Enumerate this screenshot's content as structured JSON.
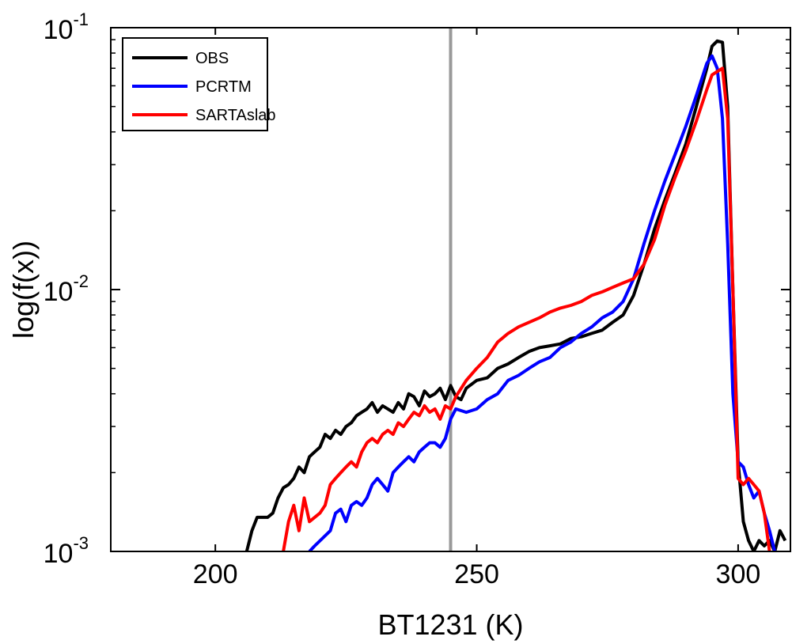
{
  "chart_data": {
    "type": "line",
    "xlabel": "BT1231 (K)",
    "ylabel": "log(f(x))",
    "xlim": [
      180,
      310
    ],
    "ylim": [
      0.001,
      0.1
    ],
    "yscale": "log",
    "xticks": [
      200,
      250,
      300
    ],
    "xtick_labels": [
      "200",
      "250",
      "300"
    ],
    "yticks": [
      0.001,
      0.01,
      0.1
    ],
    "ytick_labels": [
      {
        "base": "10",
        "exp": "-3"
      },
      {
        "base": "10",
        "exp": "-2"
      },
      {
        "base": "10",
        "exp": "-1"
      }
    ],
    "grid": false,
    "legend_position": "top-left",
    "vline": {
      "x": 245,
      "color": "#999999"
    },
    "series": [
      {
        "name": "OBS",
        "color": "#000000",
        "x": [
          206,
          207,
          208,
          210,
          211,
          212,
          213,
          214,
          215,
          216,
          217,
          218,
          219,
          220,
          221,
          222,
          223,
          224,
          225,
          226,
          227,
          228,
          229,
          230,
          231,
          232,
          233,
          234,
          235,
          236,
          237,
          238,
          239,
          240,
          241,
          242,
          243,
          244,
          245,
          246,
          247,
          248,
          250,
          252,
          254,
          256,
          258,
          260,
          262,
          264,
          266,
          268,
          270,
          272,
          274,
          276,
          278,
          280,
          282,
          284,
          286,
          288,
          290,
          292,
          294,
          295,
          296,
          297,
          298,
          299,
          300,
          301,
          302,
          303,
          304,
          305,
          306,
          307,
          308,
          309
        ],
        "values": [
          0.001,
          0.0012,
          0.00135,
          0.00135,
          0.0014,
          0.0016,
          0.00175,
          0.0018,
          0.0019,
          0.0021,
          0.002,
          0.0023,
          0.0024,
          0.0025,
          0.0028,
          0.0027,
          0.0029,
          0.0028,
          0.003,
          0.0031,
          0.0033,
          0.0034,
          0.0035,
          0.0037,
          0.0034,
          0.0036,
          0.0035,
          0.0034,
          0.0037,
          0.0035,
          0.004,
          0.0039,
          0.0036,
          0.0041,
          0.0039,
          0.004,
          0.0042,
          0.0038,
          0.0043,
          0.0039,
          0.0038,
          0.0042,
          0.0045,
          0.0046,
          0.005,
          0.0052,
          0.0055,
          0.0058,
          0.006,
          0.0061,
          0.0062,
          0.0065,
          0.0066,
          0.0068,
          0.007,
          0.0075,
          0.008,
          0.0095,
          0.0125,
          0.017,
          0.022,
          0.028,
          0.036,
          0.05,
          0.07,
          0.085,
          0.089,
          0.088,
          0.05,
          0.01,
          0.0022,
          0.0013,
          0.0011,
          0.001,
          0.0011,
          0.00105,
          0.0011,
          0.001,
          0.0012,
          0.0011
        ]
      },
      {
        "name": "PCRTM",
        "color": "#0000ff",
        "x": [
          218,
          219,
          222,
          223,
          224,
          225,
          226,
          227,
          228,
          229,
          230,
          231,
          232,
          233,
          234,
          235,
          236,
          237,
          238,
          239,
          240,
          241,
          242,
          243,
          244,
          245,
          246,
          248,
          250,
          252,
          254,
          256,
          258,
          260,
          262,
          264,
          266,
          268,
          270,
          272,
          274,
          276,
          278,
          280,
          282,
          284,
          286,
          288,
          290,
          292,
          294,
          295,
          296,
          297,
          298,
          299,
          300,
          301,
          302,
          303,
          304,
          305,
          306,
          307,
          308
        ],
        "values": [
          0.001,
          0.00105,
          0.0012,
          0.0014,
          0.00145,
          0.0013,
          0.0015,
          0.00155,
          0.0015,
          0.0016,
          0.0018,
          0.0019,
          0.0018,
          0.0017,
          0.002,
          0.0021,
          0.0022,
          0.0023,
          0.0022,
          0.0024,
          0.0025,
          0.0026,
          0.0026,
          0.0025,
          0.0027,
          0.0032,
          0.0035,
          0.0034,
          0.0035,
          0.0038,
          0.004,
          0.0045,
          0.0047,
          0.005,
          0.0053,
          0.0055,
          0.006,
          0.0063,
          0.0068,
          0.0072,
          0.0078,
          0.0082,
          0.009,
          0.011,
          0.015,
          0.02,
          0.026,
          0.033,
          0.042,
          0.055,
          0.073,
          0.078,
          0.07,
          0.045,
          0.015,
          0.004,
          0.0022,
          0.0021,
          0.0018,
          0.0016,
          0.0017,
          0.0014,
          0.0012,
          0.001,
          0.00095
        ]
      },
      {
        "name": "SARTAslab",
        "color": "#ff0000",
        "x": [
          213,
          214,
          215,
          216,
          217,
          218,
          219,
          220,
          221,
          222,
          223,
          224,
          225,
          226,
          227,
          228,
          229,
          230,
          231,
          232,
          233,
          234,
          235,
          236,
          237,
          238,
          239,
          240,
          241,
          242,
          243,
          244,
          245,
          246,
          248,
          250,
          252,
          254,
          256,
          258,
          260,
          262,
          264,
          266,
          268,
          270,
          272,
          274,
          276,
          278,
          280,
          282,
          284,
          286,
          288,
          290,
          292,
          294,
          295,
          296,
          297,
          298,
          299,
          300,
          301,
          302,
          303,
          304,
          305,
          306,
          307
        ],
        "values": [
          0.001,
          0.0013,
          0.0015,
          0.0012,
          0.0016,
          0.0013,
          0.00135,
          0.0014,
          0.0015,
          0.0018,
          0.0019,
          0.002,
          0.0021,
          0.0022,
          0.0021,
          0.0024,
          0.0026,
          0.0027,
          0.0026,
          0.0028,
          0.0029,
          0.0028,
          0.0031,
          0.003,
          0.0032,
          0.0034,
          0.0033,
          0.0036,
          0.0034,
          0.0035,
          0.0032,
          0.0036,
          0.0035,
          0.0039,
          0.0045,
          0.005,
          0.0055,
          0.0063,
          0.0068,
          0.0072,
          0.0075,
          0.0078,
          0.0082,
          0.0085,
          0.0087,
          0.009,
          0.0095,
          0.0098,
          0.0102,
          0.0106,
          0.011,
          0.0125,
          0.0155,
          0.021,
          0.027,
          0.034,
          0.044,
          0.058,
          0.066,
          0.068,
          0.07,
          0.045,
          0.01,
          0.0019,
          0.0018,
          0.0019,
          0.0018,
          0.0017,
          0.0014,
          0.001,
          0.00095
        ]
      }
    ]
  }
}
